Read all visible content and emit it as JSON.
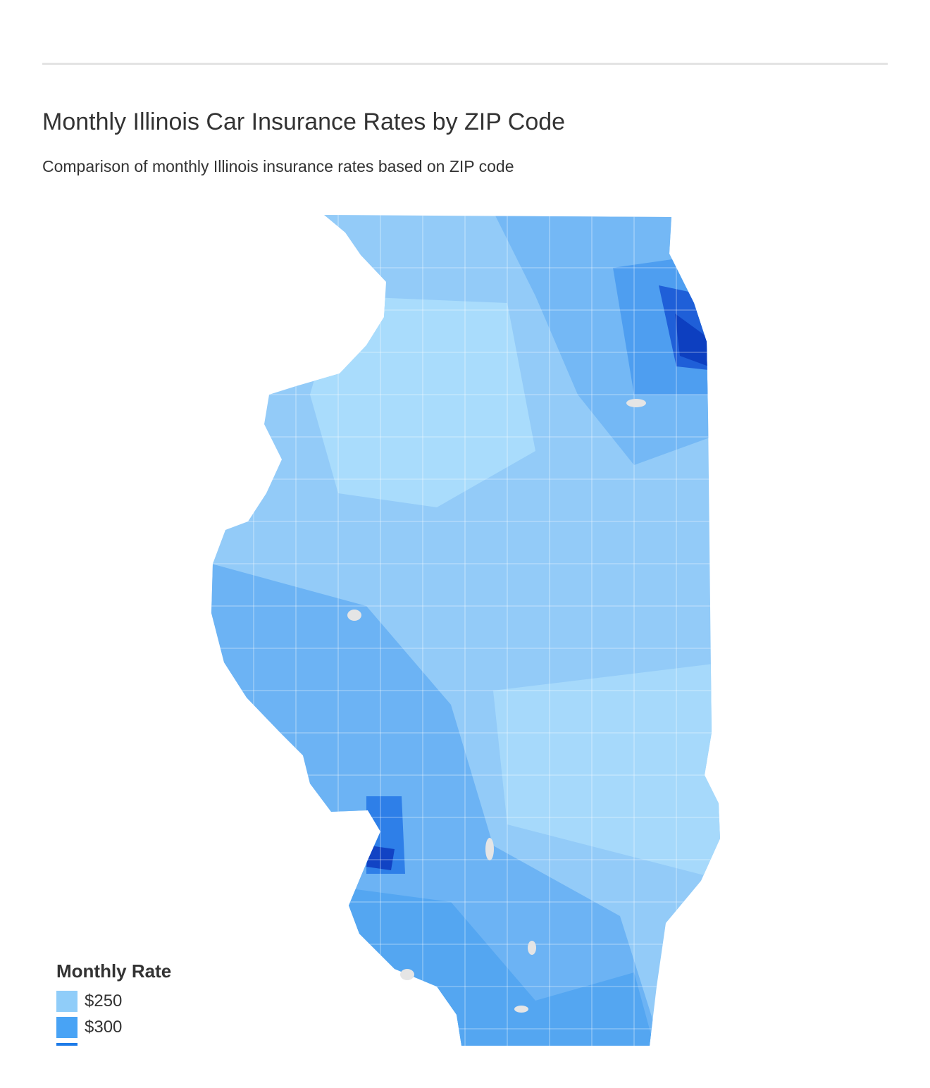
{
  "header": {
    "title": "Monthly Illinois Car Insurance Rates by ZIP Code",
    "subtitle": "Comparison of monthly Illinois insurance rates based on ZIP code"
  },
  "legend": {
    "title": "Monthly Rate",
    "items": [
      {
        "label": "$250",
        "color": "#90cdf9"
      },
      {
        "label": "$300",
        "color": "#48a3f5"
      }
    ]
  }
}
